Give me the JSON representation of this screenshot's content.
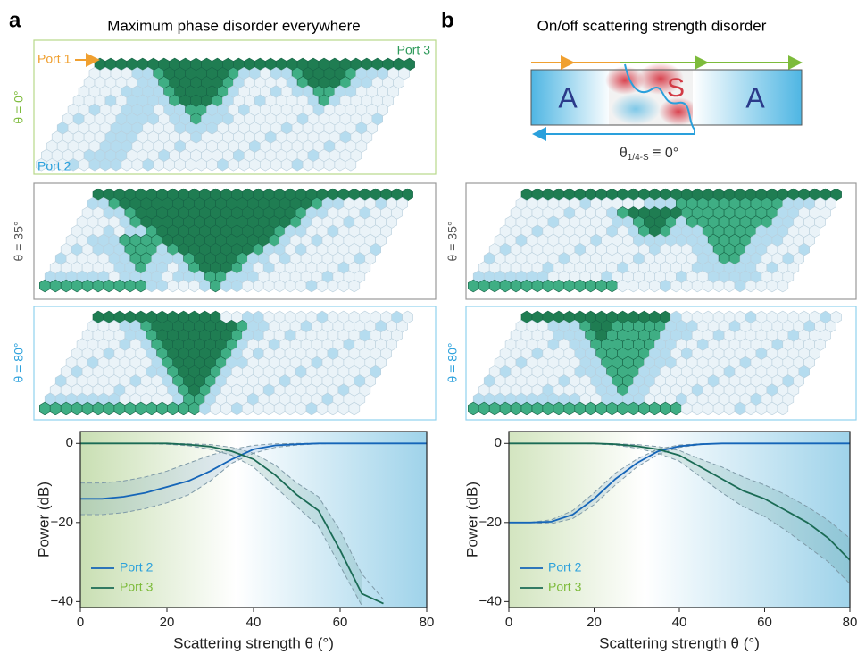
{
  "panels": [
    {
      "label": "a",
      "title": "Maximum phase disorder everywhere",
      "lattices": [
        {
          "theta_label": "θ = 0°",
          "port_labels": {
            "port1": "Port 1",
            "port3": "Port 3",
            "port2": "Port 2"
          }
        },
        {
          "theta_label": "θ = 35°"
        },
        {
          "theta_label": "θ = 80°"
        }
      ]
    },
    {
      "label": "b",
      "title": "On/off scattering strength disorder",
      "schematic": {
        "left": "A",
        "middle": "S",
        "right": "A",
        "caption_symbol": "θ",
        "caption_subscript": "1/4-S",
        "caption_rest": " ≡ 0°"
      },
      "lattices": [
        {
          "theta_label": "θ = 35°"
        },
        {
          "theta_label": "θ = 80°"
        }
      ]
    }
  ],
  "chart_data": [
    {
      "type": "line",
      "x": [
        0,
        5,
        10,
        15,
        20,
        25,
        30,
        35,
        40,
        45,
        50,
        55,
        60,
        65,
        70,
        75,
        80
      ],
      "xlim": [
        0,
        80
      ],
      "xticks": [
        0,
        20,
        40,
        60,
        80
      ],
      "ylim": [
        -41.5,
        3
      ],
      "yticks": [
        0,
        {
          "value": -20,
          "label": "−20"
        },
        {
          "value": -40,
          "label": "−40"
        }
      ],
      "xlabel": "Scattering strength θ (°)",
      "ylabel": "Power (dB)",
      "legend": "lower left",
      "series": [
        {
          "name": "Port 2",
          "color": "#1565b8",
          "label_color": "#2aa0dc",
          "values": [
            -14,
            -14,
            -13.5,
            -12.5,
            -11,
            -9.5,
            -7,
            -4,
            -1.5,
            -0.5,
            -0.2,
            0,
            0,
            0,
            0,
            0,
            0
          ],
          "lower": [
            -18,
            -18,
            -17.5,
            -16.5,
            -15,
            -13,
            -9.5,
            -5,
            -2.5,
            -1,
            -0.4,
            -0.1,
            0,
            0,
            0,
            0,
            0
          ],
          "upper": [
            -10,
            -10,
            -9.5,
            -8.5,
            -7,
            -5,
            -3,
            -1.5,
            -0.5,
            -0.1,
            0,
            0,
            0,
            0,
            0,
            0,
            0
          ]
        },
        {
          "name": "Port 3",
          "color": "#1b6b55",
          "label_color": "#7dbb3b",
          "values": [
            0,
            0,
            0,
            0,
            0,
            -0.3,
            -0.8,
            -2,
            -4,
            -8,
            -13,
            -17,
            -27,
            -38,
            -40.5,
            null,
            null
          ],
          "lower": [
            0,
            0,
            0,
            0,
            -0.2,
            -0.6,
            -1.5,
            -3,
            -6,
            -11,
            -16,
            -21,
            -31,
            -41,
            null,
            null,
            null
          ],
          "upper": [
            0,
            0,
            0,
            0,
            0,
            -0.1,
            -0.3,
            -1,
            -2.5,
            -5.5,
            -10,
            -13.5,
            -22,
            -33,
            -39.5,
            null,
            null
          ]
        }
      ]
    },
    {
      "type": "line",
      "x": [
        0,
        5,
        10,
        15,
        20,
        25,
        30,
        35,
        40,
        45,
        50,
        55,
        60,
        65,
        70,
        75,
        80
      ],
      "xlim": [
        0,
        80
      ],
      "xticks": [
        0,
        20,
        40,
        60,
        80
      ],
      "ylim": [
        -41.5,
        3
      ],
      "yticks": [
        0,
        {
          "value": -20,
          "label": "−20"
        },
        {
          "value": -40,
          "label": "−40"
        }
      ],
      "xlabel": "Scattering strength θ (°)",
      "ylabel": "Power (dB)",
      "legend": "lower left",
      "series": [
        {
          "name": "Port 2",
          "color": "#1565b8",
          "label_color": "#2aa0dc",
          "values": [
            -20,
            -20,
            -19.8,
            -18,
            -14,
            -9,
            -5,
            -2,
            -0.7,
            -0.2,
            0,
            0,
            0,
            0,
            0,
            0,
            0
          ],
          "lower": [
            -20,
            -20,
            -20.3,
            -19,
            -15.5,
            -10.5,
            -6,
            -2.8,
            -1,
            -0.3,
            0,
            0,
            0,
            0,
            0,
            0,
            0
          ],
          "upper": [
            -20,
            -20,
            -19.3,
            -17,
            -12.5,
            -7.5,
            -4,
            -1.4,
            -0.4,
            -0.1,
            0,
            0,
            0,
            0,
            0,
            0,
            0
          ]
        },
        {
          "name": "Port 3",
          "color": "#1b6b55",
          "label_color": "#7dbb3b",
          "values": [
            0,
            0,
            0,
            0,
            0,
            -0.2,
            -0.7,
            -1.5,
            -3,
            -6,
            -9,
            -12,
            -14,
            -17,
            -20,
            -24,
            -29.5
          ],
          "lower": [
            0,
            0,
            0,
            0,
            -0.1,
            -0.4,
            -1.2,
            -2.5,
            -4.5,
            -8.5,
            -12.5,
            -16,
            -18.5,
            -22,
            -26,
            -30,
            -35.5
          ],
          "upper": [
            0,
            0,
            0,
            0,
            0,
            -0.1,
            -0.3,
            -0.8,
            -1.8,
            -4,
            -6,
            -8.5,
            -10.5,
            -13,
            -16,
            -19.5,
            -24
          ]
        }
      ]
    }
  ]
}
